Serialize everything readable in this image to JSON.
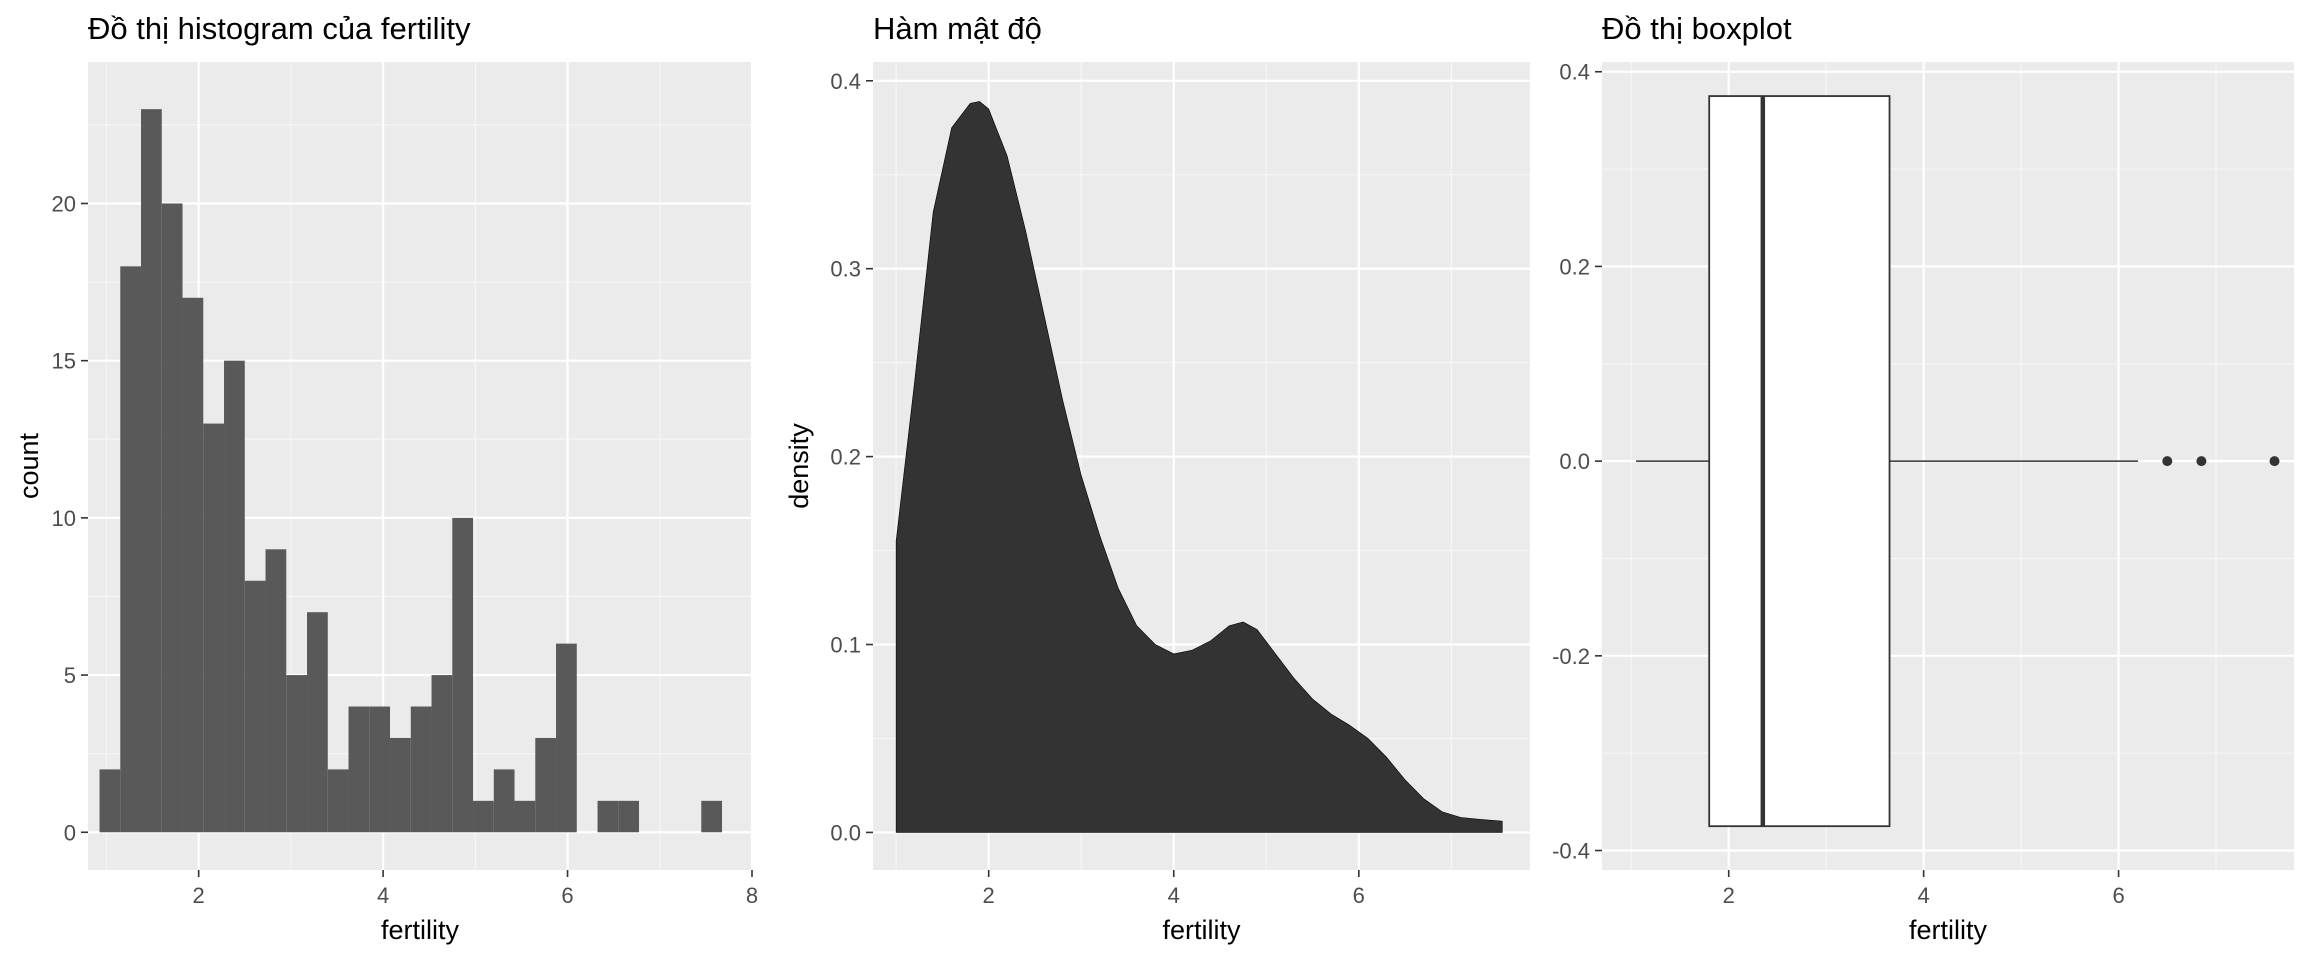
{
  "chart_data": [
    {
      "type": "bar",
      "title": "Đồ thị histogram của fertility",
      "xlabel": "fertility",
      "ylabel": "count",
      "xlim": [
        0.8,
        8.0
      ],
      "ylim": [
        -1.2,
        24.5
      ],
      "xticks": [
        2,
        4,
        6,
        8
      ],
      "yticks": [
        0,
        5,
        10,
        15,
        20
      ],
      "bin_width": 0.225,
      "bin_start": 0.925,
      "values": [
        2,
        18,
        23,
        20,
        17,
        13,
        15,
        8,
        9,
        5,
        7,
        2,
        4,
        4,
        3,
        4,
        5,
        10,
        1,
        2,
        1,
        3,
        6,
        0,
        1,
        1,
        0,
        0,
        0,
        1
      ],
      "bar_color": "#595959",
      "grid": true
    },
    {
      "type": "area",
      "title": "Hàm mật độ",
      "xlabel": "fertility",
      "ylabel": "density",
      "xlim": [
        0.75,
        7.85
      ],
      "ylim": [
        -0.02,
        0.41
      ],
      "xticks": [
        2,
        4,
        6
      ],
      "yticks": [
        0.0,
        0.1,
        0.2,
        0.3,
        0.4
      ],
      "x": [
        1.0,
        1.2,
        1.4,
        1.6,
        1.8,
        1.9,
        2.0,
        2.2,
        2.4,
        2.6,
        2.8,
        3.0,
        3.2,
        3.4,
        3.6,
        3.8,
        4.0,
        4.2,
        4.4,
        4.6,
        4.75,
        4.9,
        5.1,
        5.3,
        5.5,
        5.7,
        5.9,
        6.1,
        6.3,
        6.5,
        6.7,
        6.9,
        7.1,
        7.3,
        7.55
      ],
      "y": [
        0.155,
        0.24,
        0.33,
        0.375,
        0.388,
        0.389,
        0.385,
        0.36,
        0.32,
        0.275,
        0.23,
        0.19,
        0.158,
        0.13,
        0.11,
        0.1,
        0.095,
        0.097,
        0.102,
        0.11,
        0.112,
        0.108,
        0.095,
        0.082,
        0.071,
        0.063,
        0.057,
        0.05,
        0.04,
        0.028,
        0.018,
        0.011,
        0.008,
        0.007,
        0.006
      ],
      "fill_color": "#333333",
      "grid": true
    },
    {
      "type": "box",
      "title": "Đồ thị boxplot",
      "xlabel": "fertility",
      "ylabel": "",
      "xlim": [
        0.7,
        7.8
      ],
      "ylim": [
        -0.42,
        0.41
      ],
      "xticks": [
        2,
        4,
        6
      ],
      "yticks": [
        -0.4,
        -0.2,
        0.0,
        0.2,
        0.4
      ],
      "ytick_labels": [
        "-0.4",
        "-0.2",
        "0.0",
        "0.2",
        "0.4"
      ],
      "whisker_low": 1.05,
      "q1": 1.8,
      "median": 2.35,
      "q3": 3.65,
      "whisker_high": 6.2,
      "box_half_height": 0.375,
      "outliers": [
        6.5,
        6.85,
        7.6
      ],
      "grid": true
    }
  ]
}
